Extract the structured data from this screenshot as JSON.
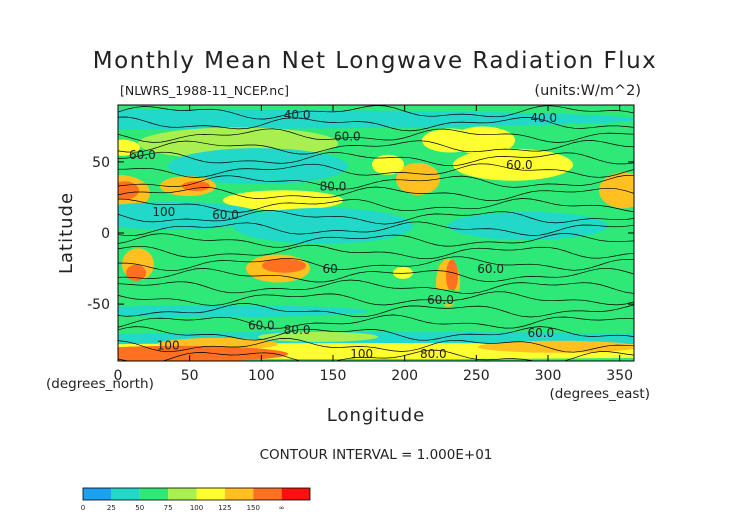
{
  "chart_data": {
    "type": "heatmap",
    "title": "Monthly Mean Net Longwave Radiation Flux",
    "subtitle_left": "[NLWRS_1988-11_NCEP.nc]",
    "units": "(units:W/m^2)",
    "xlabel": "Longitude",
    "ylabel": "Latitude",
    "x_unit_label": "(degrees_east)",
    "y_unit_label": "(degrees_north)",
    "xlim": [
      0,
      360
    ],
    "ylim": [
      -90,
      90
    ],
    "x_ticks": [
      0,
      50,
      100,
      150,
      200,
      250,
      300,
      350
    ],
    "y_ticks": [
      50,
      0,
      -50
    ],
    "contour_interval_text": "CONTOUR INTERVAL = 1.000E+01",
    "colorbar": {
      "labels": [
        "0",
        "25",
        "50",
        "75",
        "100",
        "125",
        "150",
        "∞"
      ],
      "colors": [
        "#1ea0f0",
        "#22d8c8",
        "#2ee878",
        "#a8f050",
        "#ffff30",
        "#ffc020",
        "#ff7020",
        "#ff1010"
      ]
    },
    "contour_labels": [
      {
        "text": "40.0",
        "lon": 125,
        "lat": 80
      },
      {
        "text": "40.0",
        "lon": 297,
        "lat": 78
      },
      {
        "text": "60.0",
        "lon": 160,
        "lat": 65
      },
      {
        "text": "60.0",
        "lon": 17,
        "lat": 52
      },
      {
        "text": "60.0",
        "lon": 280,
        "lat": 45
      },
      {
        "text": "60.0",
        "lon": 75,
        "lat": 10
      },
      {
        "text": "80.0",
        "lon": 150,
        "lat": 30
      },
      {
        "text": "100",
        "lon": 32,
        "lat": 12
      },
      {
        "text": "60.0",
        "lon": 260,
        "lat": -28
      },
      {
        "text": "60",
        "lon": 148,
        "lat": -28
      },
      {
        "text": "60.0",
        "lon": 225,
        "lat": -50
      },
      {
        "text": "60.0",
        "lon": 100,
        "lat": -68
      },
      {
        "text": "80.0",
        "lon": 125,
        "lat": -71
      },
      {
        "text": "60.0",
        "lon": 295,
        "lat": -73
      },
      {
        "text": "100",
        "lon": 35,
        "lat": -82
      },
      {
        "text": "100",
        "lon": 170,
        "lat": -88
      },
      {
        "text": "80.0",
        "lon": 220,
        "lat": -88
      }
    ]
  }
}
